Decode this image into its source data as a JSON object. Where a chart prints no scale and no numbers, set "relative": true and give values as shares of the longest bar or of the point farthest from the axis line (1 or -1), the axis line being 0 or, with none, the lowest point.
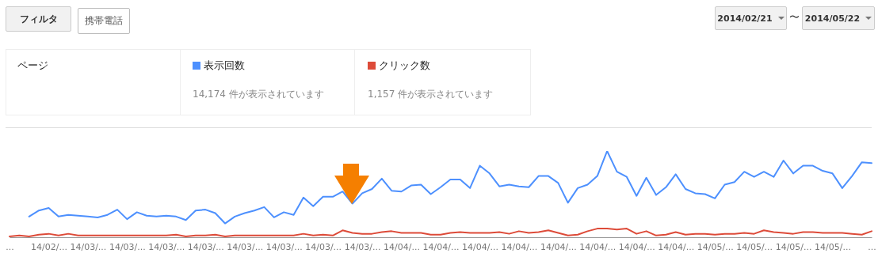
{
  "chart_data": {
    "type": "line",
    "relative": true,
    "legend": "top left",
    "categories": [
      "...",
      null,
      null,
      null,
      "14/02/...",
      null,
      null,
      null,
      "14/03/...",
      null,
      null,
      null,
      "14/03/...",
      null,
      null,
      null,
      "14/03/...",
      null,
      null,
      null,
      "14/03/...",
      null,
      null,
      null,
      "14/03/...",
      null,
      null,
      null,
      "14/03/...",
      null,
      null,
      null,
      "14/03/...",
      null,
      null,
      null,
      "14/03/...",
      null,
      null,
      null,
      "14/04/...",
      null,
      null,
      null,
      "14/04/...",
      null,
      null,
      null,
      "14/04/...",
      null,
      null,
      null,
      "14/04/...",
      null,
      null,
      null,
      "14/04/...",
      null,
      null,
      null,
      "14/04/...",
      null,
      null,
      null,
      "14/04/...",
      null,
      null,
      null,
      "14/04/...",
      null,
      null,
      null,
      "14/05/...",
      null,
      null,
      null,
      "14/05/...",
      null,
      null,
      null,
      "14/05/...",
      null,
      null,
      null,
      "14/05/...",
      null,
      null,
      null,
      "..."
    ],
    "series": [
      {
        "name": "表示回数",
        "color": "#4d90fe",
        "values": [
          null,
          null,
          0.24,
          0.31,
          0.34,
          0.24,
          0.26,
          0.25,
          0.24,
          0.23,
          0.26,
          0.32,
          0.21,
          0.29,
          0.25,
          0.24,
          0.25,
          0.24,
          0.2,
          0.31,
          0.32,
          0.28,
          0.16,
          0.24,
          0.28,
          0.31,
          0.35,
          0.23,
          0.29,
          0.26,
          0.46,
          0.36,
          0.47,
          0.47,
          0.53,
          0.39,
          0.51,
          0.56,
          0.68,
          0.54,
          0.53,
          0.6,
          0.61,
          0.5,
          0.58,
          0.67,
          0.67,
          0.57,
          0.83,
          0.74,
          0.59,
          0.61,
          0.59,
          0.58,
          0.71,
          0.71,
          0.63,
          0.4,
          0.57,
          0.61,
          0.71,
          1,
          0.76,
          0.7,
          0.48,
          0.69,
          0.49,
          0.58,
          0.73,
          0.56,
          0.51,
          0.5,
          0.45,
          0.61,
          0.64,
          0.76,
          0.7,
          0.76,
          0.7,
          0.89,
          0.74,
          0.83,
          0.83,
          0.77,
          0.74,
          0.57,
          0.71,
          0.87,
          0.86
        ]
      },
      {
        "name": "クリック数",
        "color": "#dd4b39",
        "values": [
          0.01,
          0.02,
          0.01,
          0.03,
          0.04,
          0.02,
          0.04,
          0.02,
          0.02,
          0.02,
          0.02,
          0.02,
          0.02,
          0.02,
          0.02,
          0.02,
          0.02,
          0.03,
          0.01,
          0.02,
          0.02,
          0.03,
          0.01,
          0.02,
          0.02,
          0.02,
          0.02,
          0.02,
          0.02,
          0.02,
          0.04,
          0.02,
          0.03,
          0.02,
          0.08,
          0.05,
          0.04,
          0.04,
          0.06,
          0.07,
          0.05,
          0.05,
          0.05,
          0.03,
          0.03,
          0.05,
          0.06,
          0.05,
          0.05,
          0.05,
          0.06,
          0.04,
          0.07,
          0.05,
          0.06,
          0.08,
          0.05,
          0.02,
          0.03,
          0.07,
          0.1,
          0.1,
          0.09,
          0.1,
          0.04,
          0.07,
          0.02,
          0.03,
          0.06,
          0.03,
          0.04,
          0.04,
          0.03,
          0.04,
          0.04,
          0.05,
          0.04,
          0.08,
          0.06,
          0.05,
          0.04,
          0.06,
          0.06,
          0.05,
          0.05,
          0.05,
          0.04,
          0.03,
          0.07
        ]
      }
    ],
    "annotations": [
      "フィルタ",
      "携帯電話",
      "2014/02/21",
      "〜",
      "2014/05/22",
      "ページ",
      "14,174 件が表示されています",
      "1,157 件が表示されています"
    ]
  }
}
